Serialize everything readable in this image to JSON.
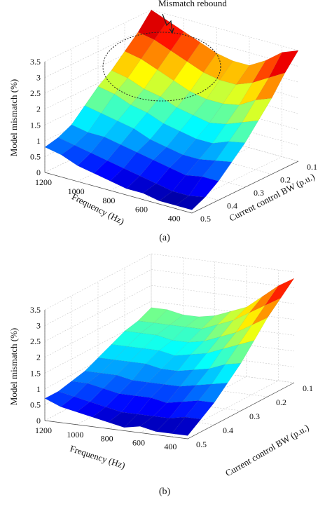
{
  "chart_data": [
    {
      "type": "surface",
      "id": "a",
      "caption": "(a)",
      "annotation": "Mismatch rebound",
      "xlabel": "Frequency (Hz)",
      "ylabel": "Current control BW (p.u.)",
      "zlabel": "Model mismatch (%)",
      "xticks": [
        "1200",
        "1000",
        "800",
        "600",
        "400"
      ],
      "yticks": [
        "0.1",
        "0.2",
        "0.3",
        "0.4",
        "0.5"
      ],
      "zticks": [
        "0",
        "0.5",
        "1",
        "1.5",
        "2",
        "2.5",
        "3",
        "3.5"
      ],
      "xlim": [
        300,
        1200
      ],
      "ylim": [
        0.1,
        0.5
      ],
      "zlim": [
        0,
        3.5
      ],
      "colormap": "jet",
      "frequency": [
        1200,
        1100,
        1000,
        900,
        800,
        700,
        600,
        500,
        400,
        300
      ],
      "bandwidth": [
        0.1,
        0.15,
        0.2,
        0.25,
        0.3,
        0.35,
        0.4,
        0.45,
        0.5
      ],
      "z": [
        [
          3.5,
          3.3,
          3.1,
          2.9,
          2.7,
          2.6,
          2.6,
          2.9,
          3.3,
          3.5
        ],
        [
          3.0,
          2.9,
          2.7,
          2.5,
          2.3,
          2.2,
          2.2,
          2.4,
          2.7,
          3.0
        ],
        [
          2.6,
          2.5,
          2.3,
          2.1,
          1.9,
          1.8,
          1.8,
          1.9,
          2.2,
          2.4
        ],
        [
          2.2,
          2.1,
          1.9,
          1.8,
          1.6,
          1.5,
          1.4,
          1.5,
          1.7,
          1.9
        ],
        [
          1.9,
          1.8,
          1.6,
          1.5,
          1.3,
          1.2,
          1.1,
          1.1,
          1.3,
          1.4
        ],
        [
          1.5,
          1.4,
          1.3,
          1.2,
          1.0,
          0.9,
          0.8,
          0.8,
          0.9,
          1.0
        ],
        [
          1.1,
          1.0,
          1.0,
          0.9,
          0.8,
          0.7,
          0.6,
          0.5,
          0.6,
          0.6
        ],
        [
          0.9,
          0.8,
          0.7,
          0.6,
          0.5,
          0.4,
          0.3,
          0.2,
          0.2,
          0.3
        ],
        [
          0.8,
          0.7,
          0.5,
          0.4,
          0.3,
          0.2,
          0.2,
          0.1,
          0.1,
          0.1
        ]
      ]
    },
    {
      "type": "surface",
      "id": "b",
      "caption": "(b)",
      "xlabel": "Frequency (Hz)",
      "ylabel": "Current control BW (p.u.)",
      "zlabel": "Model mismatch (%)",
      "xticks": [
        "1200",
        "1000",
        "800",
        "600",
        "400"
      ],
      "yticks": [
        "0.1",
        "0.2",
        "0.3",
        "0.4",
        "0.5"
      ],
      "zticks": [
        "0",
        "0.5",
        "1",
        "1.5",
        "2",
        "2.5",
        "3",
        "3.5"
      ],
      "xlim": [
        300,
        1200
      ],
      "ylim": [
        0.1,
        0.5
      ],
      "zlim": [
        0,
        3.5
      ],
      "colormap": "jet",
      "frequency": [
        1200,
        1100,
        1000,
        900,
        800,
        700,
        600,
        500,
        400,
        300
      ],
      "bandwidth": [
        0.1,
        0.15,
        0.2,
        0.25,
        0.3,
        0.35,
        0.4,
        0.45,
        0.5
      ],
      "z": [
        [
          1.8,
          1.8,
          1.7,
          1.7,
          1.8,
          2.0,
          2.2,
          2.6,
          3.0,
          3.3
        ],
        [
          1.6,
          1.6,
          1.6,
          1.6,
          1.6,
          1.8,
          2.0,
          2.3,
          2.6,
          2.9
        ],
        [
          1.5,
          1.5,
          1.5,
          1.4,
          1.4,
          1.5,
          1.7,
          1.9,
          2.2,
          2.5
        ],
        [
          1.3,
          1.3,
          1.3,
          1.3,
          1.2,
          1.3,
          1.4,
          1.6,
          1.8,
          2.0
        ],
        [
          1.1,
          1.1,
          1.1,
          1.1,
          1.0,
          1.0,
          1.1,
          1.2,
          1.4,
          1.5
        ],
        [
          0.9,
          0.9,
          0.9,
          0.8,
          0.8,
          0.8,
          0.8,
          0.9,
          1.0,
          1.1
        ],
        [
          0.8,
          0.8,
          0.7,
          0.6,
          0.6,
          0.6,
          0.5,
          0.6,
          0.7,
          0.7
        ],
        [
          0.7,
          0.6,
          0.5,
          0.4,
          0.3,
          0.3,
          0.3,
          0.3,
          0.4,
          0.4
        ],
        [
          0.7,
          0.5,
          0.4,
          0.3,
          0.2,
          0.1,
          0.2,
          0.1,
          0.1,
          0.1
        ]
      ]
    }
  ]
}
